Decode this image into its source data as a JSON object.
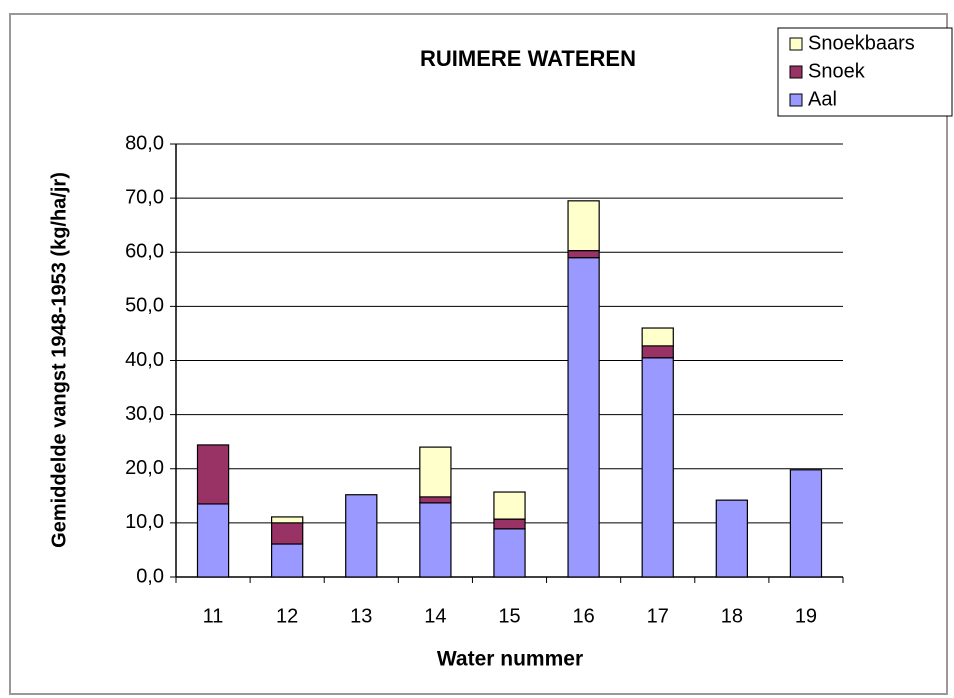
{
  "chart_data": {
    "type": "stacked_bar",
    "title": "RUIMERE WATEREN",
    "x_label": "Water nummer",
    "y_label": "Gemiddelde vangst  1948-1953  (kg/ha/jr)",
    "categories": [
      "11",
      "12",
      "13",
      "14",
      "15",
      "16",
      "17",
      "18",
      "19"
    ],
    "series": [
      {
        "name": "Aal",
        "color": "#9999ff",
        "values": [
          13.5,
          6.1,
          15.2,
          13.7,
          8.9,
          59.0,
          40.5,
          14.2,
          19.8
        ]
      },
      {
        "name": "Snoek",
        "color": "#993366",
        "values": [
          10.9,
          3.9,
          0,
          1.1,
          1.8,
          1.3,
          2.2,
          0,
          0
        ]
      },
      {
        "name": "Snoekbaars",
        "color": "#ffffcc",
        "values": [
          0,
          1.1,
          0,
          9.2,
          5.0,
          9.2,
          3.3,
          0,
          0
        ]
      }
    ],
    "ylim": [
      0,
      80
    ],
    "yticks": [
      {
        "value": 0,
        "label": "0,0"
      },
      {
        "value": 10,
        "label": "10,0"
      },
      {
        "value": 20,
        "label": "20,0"
      },
      {
        "value": 30,
        "label": "30,0"
      },
      {
        "value": 40,
        "label": "40,0"
      },
      {
        "value": 50,
        "label": "50,0"
      },
      {
        "value": 60,
        "label": "60,0"
      },
      {
        "value": 70,
        "label": "70,0"
      },
      {
        "value": 80,
        "label": "80,0"
      }
    ],
    "grid": true,
    "legend": "top-right"
  }
}
